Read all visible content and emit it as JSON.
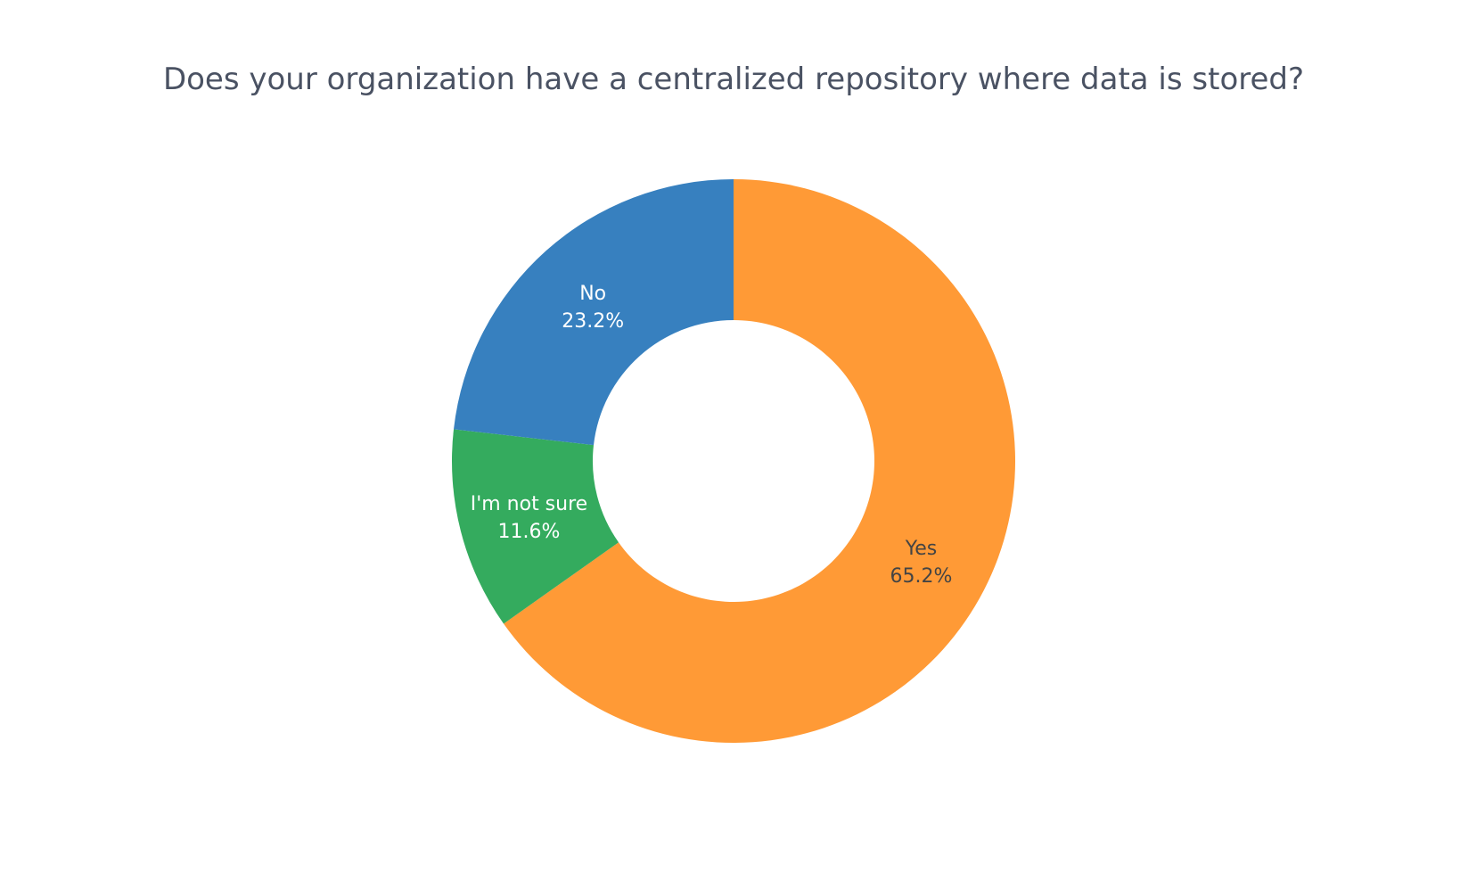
{
  "chart_data": {
    "type": "pie",
    "hole": 0.5,
    "title": "Does your organization have a centralized repository where data is stored?",
    "direction": "clockwise",
    "start": "top",
    "slices": [
      {
        "label": "Yes",
        "value": 65.2,
        "percent_text": "65.2%",
        "color": "#ff9a36",
        "text_color": "#444444"
      },
      {
        "label": "I'm not sure",
        "value": 11.6,
        "percent_text": "11.6%",
        "color": "#34ab5e",
        "text_color": "#ffffff"
      },
      {
        "label": "No",
        "value": 23.2,
        "percent_text": "23.2%",
        "color": "#3780bf",
        "text_color": "#ffffff"
      }
    ]
  }
}
